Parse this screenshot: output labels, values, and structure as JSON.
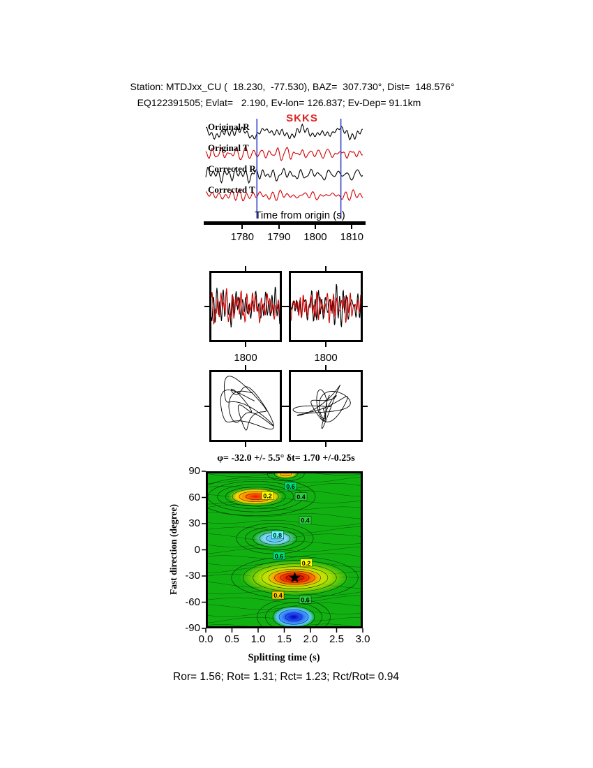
{
  "header": {
    "line1": "Station: MTDJxx_CU (  18.230,  -77.530), BAZ=  307.730°, Dist=  148.576°",
    "line2": "EQ122391505; Evlat=   2.190, Ev-lon= 126.837; Ev-Dep= 91.1km"
  },
  "phase": "SKKS",
  "footer": "Ror= 1.56; Rot= 1.31; Rct= 1.23; Rct/Rot= 0.94",
  "colors": {
    "trace_black": "#000000",
    "trace_red": "#d40000",
    "window_line": "#3a46c8",
    "phase_label": "#dd2222",
    "map_bg": "#12b112",
    "contour_line": "#000000"
  },
  "chart_data": [
    {
      "id": "record-section",
      "type": "line",
      "xlabel": "Time from origin (s)",
      "xlim": [
        1770,
        1813
      ],
      "xticks": [
        "1780",
        "1790",
        "1800",
        "1810"
      ],
      "window_s": [
        1784,
        1807
      ],
      "phase_pick": "SKKS",
      "traces": [
        {
          "label": "Original R",
          "color": "#000000",
          "seed": 42,
          "amp": 12
        },
        {
          "label": "Original T",
          "color": "#d40000",
          "seed": 77,
          "amp": 10
        },
        {
          "label": "Corrected R",
          "color": "#000000",
          "seed": 131,
          "amp": 12
        },
        {
          "label": "Corrected T",
          "color": "#d40000",
          "seed": 203,
          "amp": 9
        }
      ]
    },
    {
      "id": "window-seismograms",
      "type": "line",
      "panels": [
        {
          "name": "windowed-original",
          "xtick_label": "1800",
          "traces": [
            {
              "color": "#000000",
              "seed": 55,
              "amp": 30
            },
            {
              "color": "#d40000",
              "seed": 56,
              "amp": 26
            }
          ]
        },
        {
          "name": "windowed-corrected",
          "xtick_label": "1800",
          "traces": [
            {
              "color": "#000000",
              "seed": 91,
              "amp": 32
            },
            {
              "color": "#d40000",
              "seed": 92,
              "amp": 24
            }
          ]
        }
      ]
    },
    {
      "id": "particle-motion",
      "type": "scatter",
      "panels": [
        {
          "name": "particle-original",
          "seed": 21,
          "rot": 8,
          "sx": 1.0,
          "sy": 0.9
        },
        {
          "name": "particle-corrected",
          "seed": 34,
          "rot": -25,
          "sx": 1.0,
          "sy": 0.62
        }
      ]
    },
    {
      "id": "splitting-energy-map",
      "type": "heatmap",
      "title": "φ= -32.0 +/- 5.5° δt= 1.70 +/-0.25s",
      "xlabel": "Splitting time (s)",
      "ylabel": "Fast direction (degree)",
      "xlim": [
        0,
        3
      ],
      "ylim": [
        -90,
        90
      ],
      "xticks": [
        "0.0",
        "0.5",
        "1.0",
        "1.5",
        "2.0",
        "2.5",
        "3.0"
      ],
      "yticks": [
        "90",
        "60",
        "30",
        "0",
        "-30",
        "-60",
        "-90"
      ],
      "best_fit": {
        "phi": -32.0,
        "phi_err": 5.5,
        "dt": 1.7,
        "dt_err": 0.25
      },
      "star": {
        "x": 1.7,
        "y": -32
      },
      "contour_levels": [
        0.2,
        0.4,
        0.6,
        0.8
      ],
      "features": [
        {
          "name": "upper-left-anomaly",
          "cx": 0.95,
          "cy": 61,
          "rx": 0.52,
          "ry": 10,
          "stops": [
            [
              0,
              "#ee1100",
              1
            ],
            [
              0.35,
              "#ff7700",
              1
            ],
            [
              0.7,
              "#ffd400",
              1
            ],
            [
              1,
              "#ffd400",
              0
            ]
          ],
          "ring_scales": [
            0.35,
            0.6,
            0.85,
            1.1,
            1.4,
            1.75,
            2.2
          ]
        },
        {
          "name": "mid-cyan-anomaly",
          "cx": 1.32,
          "cy": 13,
          "rx": 0.42,
          "ry": 10,
          "stops": [
            [
              0,
              "#3db9ff",
              1
            ],
            [
              0.5,
              "#7fd8ff",
              1
            ],
            [
              1,
              "#7fd8ff",
              0
            ]
          ],
          "ring_scales": [
            0.4,
            0.7,
            1.0,
            1.35,
            1.75
          ]
        },
        {
          "name": "best-fit-halo",
          "cx": 1.7,
          "cy": -32,
          "rx": 1.05,
          "ry": 20,
          "stops": [
            [
              0,
              "#ffe800",
              1
            ],
            [
              0.6,
              "#c8e800",
              0.9
            ],
            [
              1,
              "#c8e800",
              0
            ]
          ],
          "ring_scales": []
        },
        {
          "name": "best-fit-core",
          "cx": 1.7,
          "cy": -32,
          "rx": 0.55,
          "ry": 11,
          "stops": [
            [
              0,
              "#b00000",
              1
            ],
            [
              0.35,
              "#ee2200",
              1
            ],
            [
              0.7,
              "#ff8800",
              1
            ],
            [
              1,
              "#ffcc00",
              0
            ]
          ],
          "ring_scales": [
            0.3,
            0.5,
            0.7,
            0.9,
            1.15,
            1.45,
            1.8,
            2.2
          ]
        },
        {
          "name": "lower-blue-anomaly",
          "cx": 1.68,
          "cy": -77,
          "rx": 0.4,
          "ry": 12,
          "stops": [
            [
              0,
              "#0000c8",
              1
            ],
            [
              0.45,
              "#2b6bff",
              1
            ],
            [
              0.8,
              "#59c8ff",
              1
            ],
            [
              1,
              "#59c8ff",
              0
            ]
          ],
          "ring_scales": [
            0.4,
            0.7,
            1.0,
            1.35,
            1.75
          ]
        },
        {
          "name": "top-edge-spot",
          "cx": 1.53,
          "cy": 87,
          "rx": 0.22,
          "ry": 5,
          "stops": [
            [
              0,
              "#ff9900",
              1
            ],
            [
              0.6,
              "#ffd400",
              1
            ],
            [
              1,
              "#ffd400",
              0
            ]
          ],
          "ring_scales": [
            0.5,
            1.0,
            1.6
          ]
        }
      ],
      "labels": [
        {
          "text": "0.6",
          "x": 1.62,
          "y": 73,
          "bg": "#00dd77"
        },
        {
          "text": "0.2",
          "x": 1.18,
          "y": 62,
          "bg": "#ffff00"
        },
        {
          "text": "0.4",
          "x": 1.82,
          "y": 61,
          "bg": "#2ecc40"
        },
        {
          "text": "0.4",
          "x": 1.9,
          "y": 34,
          "bg": "#2ecc40"
        },
        {
          "text": "0.8",
          "x": 1.37,
          "y": 17,
          "bg": "#66ffff"
        },
        {
          "text": "0.6",
          "x": 1.4,
          "y": -7,
          "bg": "#00dd77"
        },
        {
          "text": "0.2",
          "x": 1.92,
          "y": -15,
          "bg": "#ffff00"
        },
        {
          "text": "0.4",
          "x": 1.38,
          "y": -52,
          "bg": "#ffcc00"
        },
        {
          "text": "0.6",
          "x": 1.9,
          "y": -57,
          "bg": "#2ecc40"
        }
      ]
    }
  ]
}
